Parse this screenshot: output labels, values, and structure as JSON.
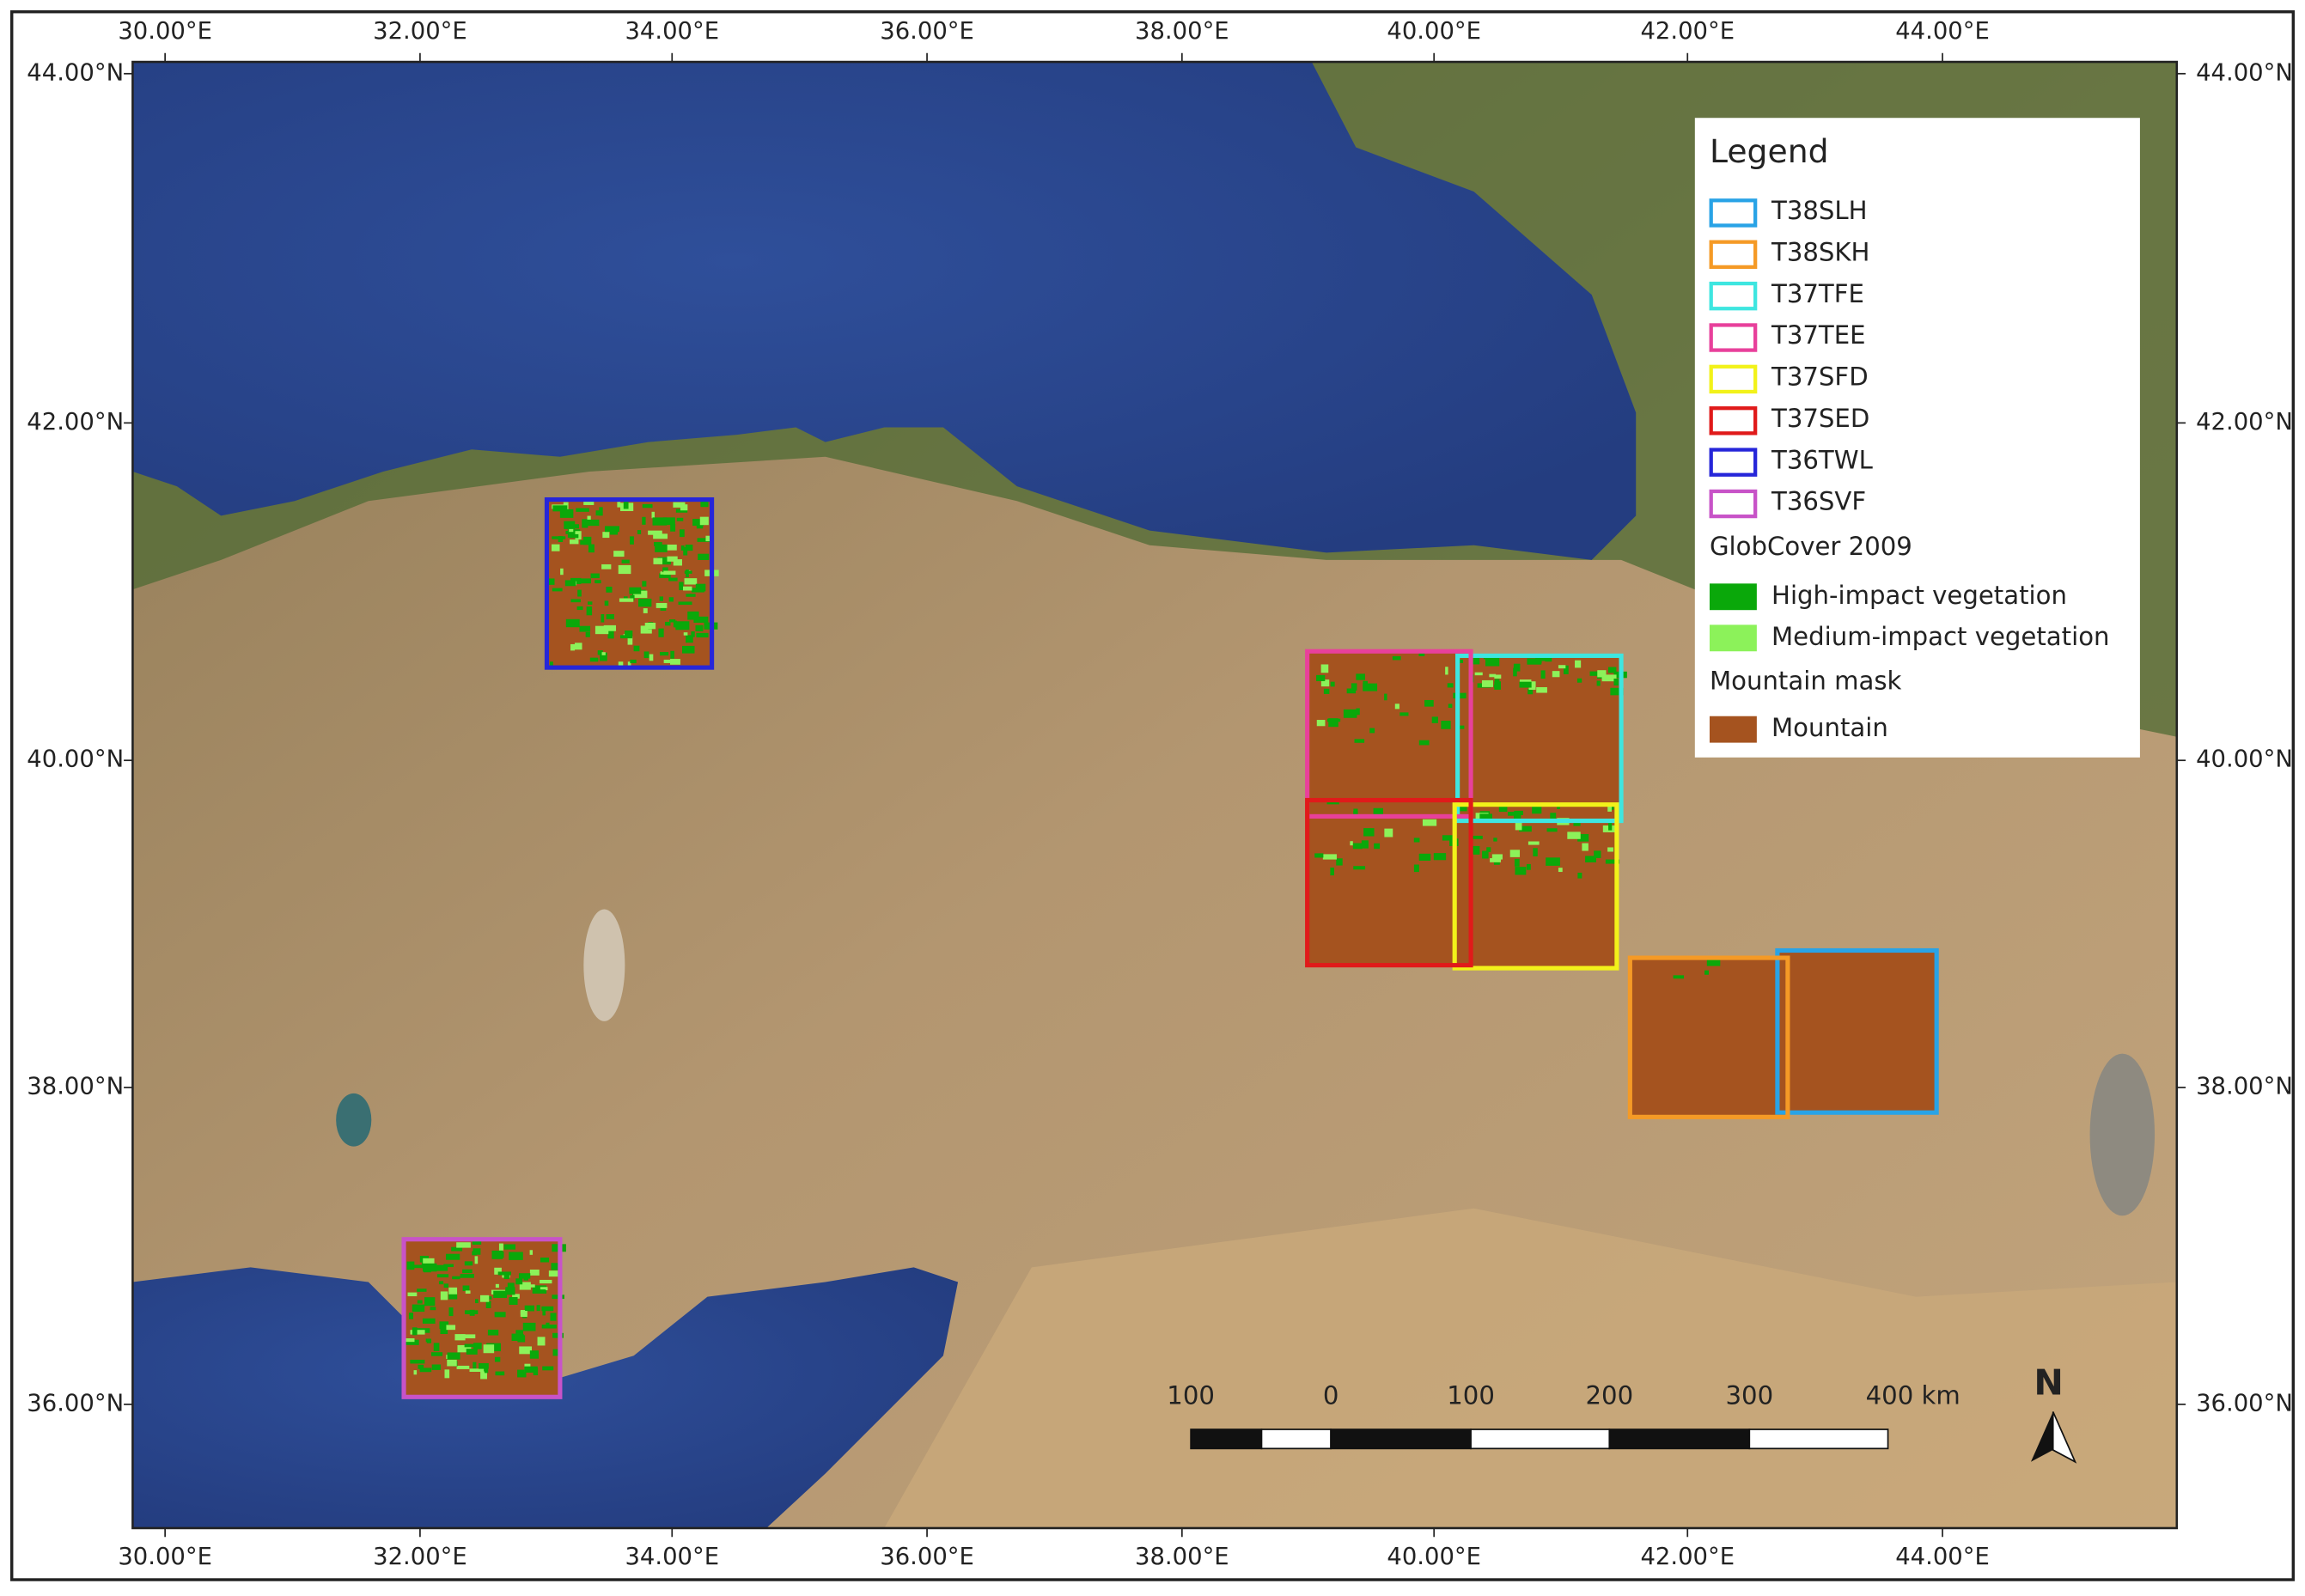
{
  "axes": {
    "longitude_labels": [
      "30.00°E",
      "32.00°E",
      "34.00°E",
      "36.00°E",
      "38.00°E",
      "40.00°E",
      "42.00°E",
      "44.00°E"
    ],
    "latitude_labels": [
      "44.00°N",
      "42.00°N",
      "40.00°N",
      "38.00°N",
      "36.00°N"
    ]
  },
  "legend": {
    "title": "Legend",
    "tiles": [
      {
        "label": "T38SLH",
        "color": "#29a3e6"
      },
      {
        "label": "T38SKH",
        "color": "#f59a26"
      },
      {
        "label": "T37TFE",
        "color": "#3ee6e0"
      },
      {
        "label": "T37TEE",
        "color": "#e8409b"
      },
      {
        "label": "T37SFD",
        "color": "#f2f21a"
      },
      {
        "label": "T37SED",
        "color": "#e01a1a"
      },
      {
        "label": "T36TWL",
        "color": "#2626d9"
      },
      {
        "label": "T36SVF",
        "color": "#c853c8"
      }
    ],
    "globcover": {
      "title": "GlobCover 2009",
      "items": [
        {
          "label": "High-impact vegetation",
          "color": "#0aa80a"
        },
        {
          "label": "Medium-impact vegetation",
          "color": "#8cf25a"
        }
      ]
    },
    "mountain": {
      "title": "Mountain mask",
      "items": [
        {
          "label": "Mountain",
          "color": "#a5531f"
        }
      ]
    }
  },
  "scale_bar": {
    "labels": [
      "100",
      "0",
      "100",
      "200",
      "300",
      "400 km"
    ]
  },
  "north_arrow": {
    "label": "N"
  }
}
